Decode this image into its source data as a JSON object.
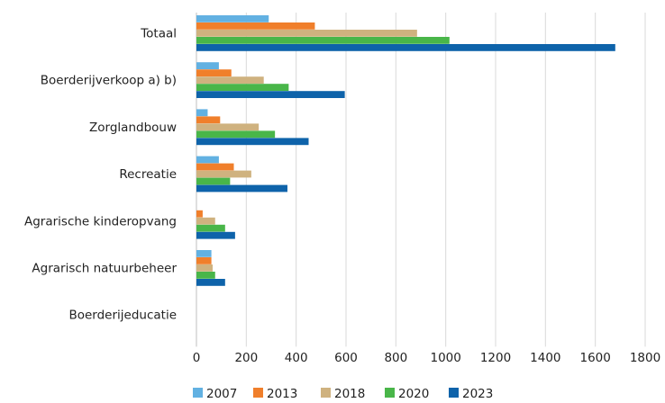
{
  "chart_data": {
    "type": "bar",
    "orientation": "horizontal",
    "categories": [
      "Totaal",
      "Boerderijverkoop a) b)",
      "Zorglandbouw",
      "Recreatie",
      "Agrarische kinderopvang",
      "Agrarisch natuurbeheer",
      "Boerderijeducatie"
    ],
    "series": [
      {
        "name": "2007",
        "color": "#62B1E2",
        "values": [
          290,
          90,
          45,
          90,
          0,
          60,
          0
        ]
      },
      {
        "name": "2013",
        "color": "#F07F2B",
        "values": [
          475,
          140,
          95,
          150,
          25,
          60,
          0
        ]
      },
      {
        "name": "2018",
        "color": "#CFB27F",
        "values": [
          885,
          270,
          250,
          220,
          75,
          65,
          0
        ]
      },
      {
        "name": "2020",
        "color": "#49B649",
        "values": [
          1015,
          370,
          315,
          135,
          115,
          75,
          0
        ]
      },
      {
        "name": "2023",
        "color": "#0E63AA",
        "values": [
          1680,
          595,
          450,
          365,
          155,
          115,
          0
        ]
      }
    ],
    "xlim": [
      0,
      1800
    ],
    "xticks": [
      0,
      200,
      400,
      600,
      800,
      1000,
      1200,
      1400,
      1600,
      1800
    ],
    "grid": true,
    "legend_position": "bottom"
  }
}
